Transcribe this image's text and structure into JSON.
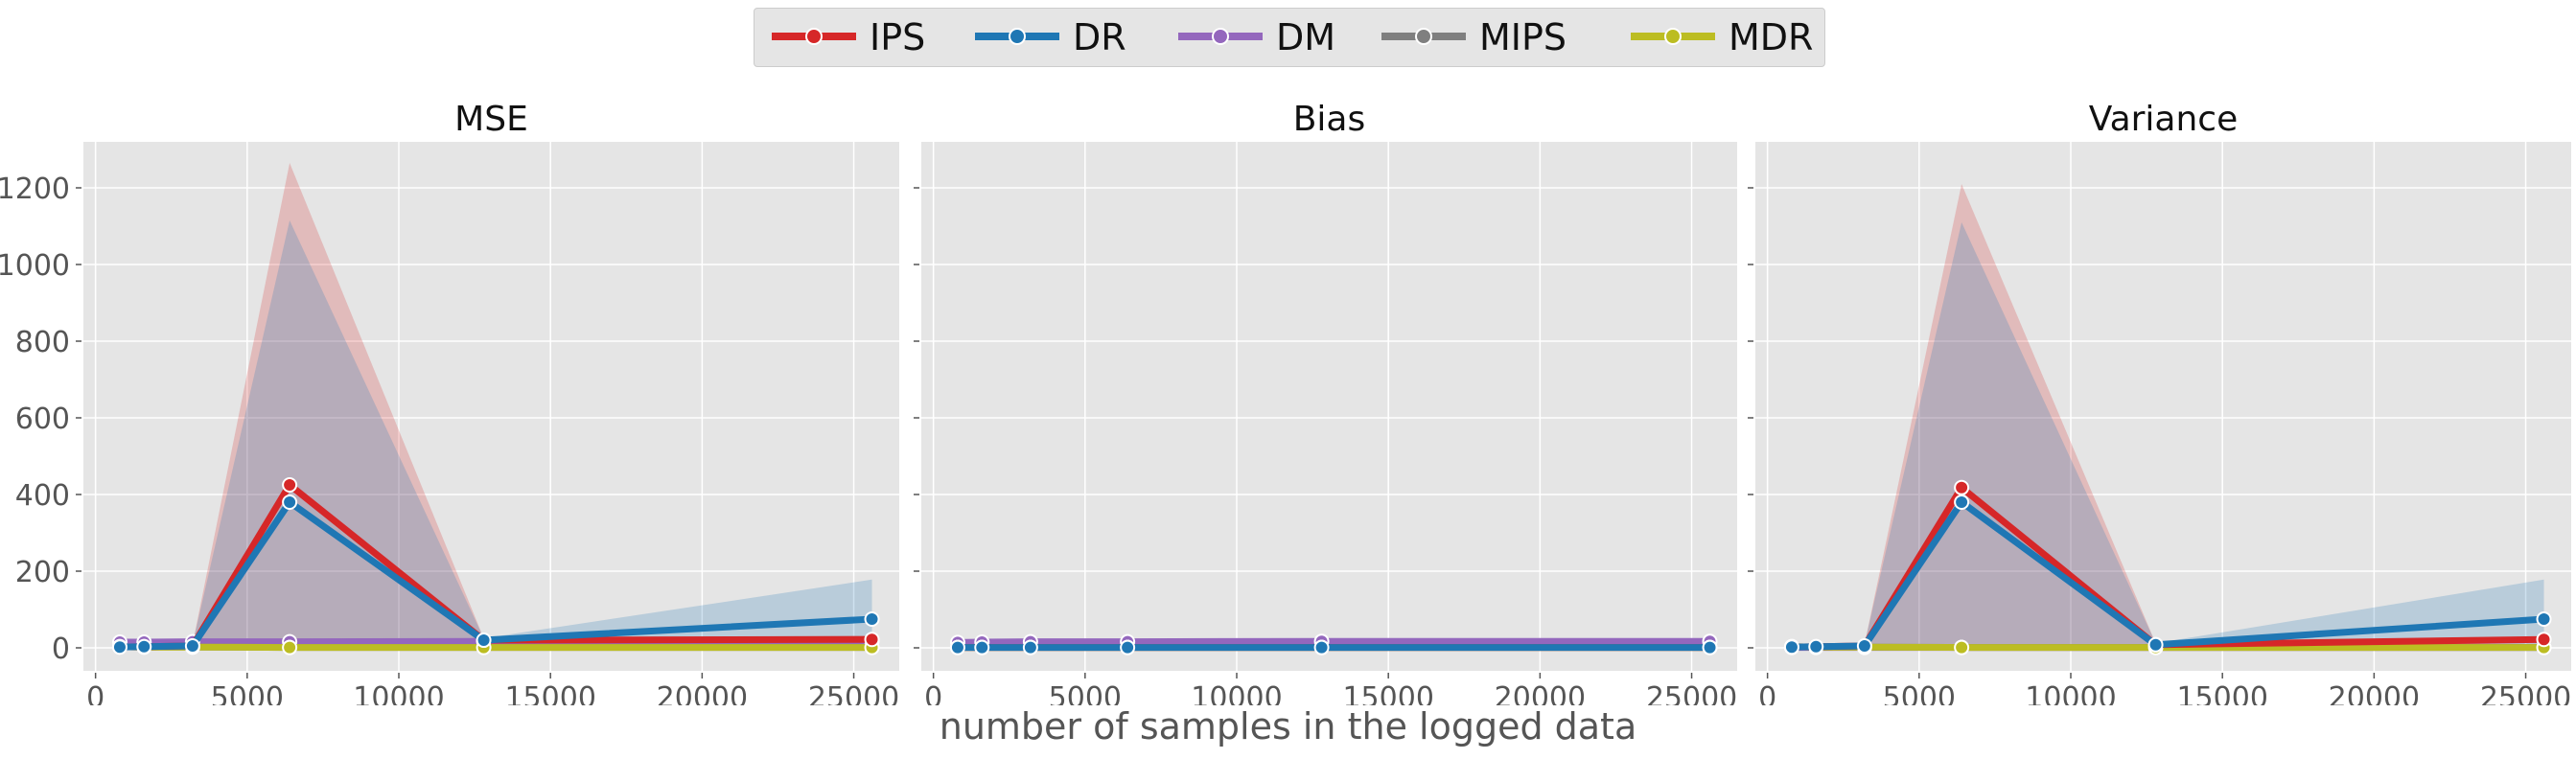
{
  "chart_data": {
    "type": "line",
    "shared_xlabel": "number of samples in the logged data",
    "x_ticks": [
      0,
      5000,
      10000,
      15000,
      20000,
      25000
    ],
    "y_ticks": [
      0,
      200,
      400,
      600,
      800,
      1000,
      1200
    ],
    "xlim": [
      -400,
      26500
    ],
    "ylim": [
      -60,
      1320
    ],
    "grid": true,
    "legend_position": "top-center",
    "legend": [
      {
        "name": "IPS",
        "color": "#d62728"
      },
      {
        "name": "DR",
        "color": "#1f77b4"
      },
      {
        "name": "DM",
        "color": "#9467bd"
      },
      {
        "name": "MIPS",
        "color": "#7f7f7f"
      },
      {
        "name": "MDR",
        "color": "#bcbd22"
      }
    ],
    "panels": [
      {
        "title": "MSE",
        "series": [
          {
            "name": "IPS",
            "x": [
              800,
              1600,
              3200,
              6400,
              12800,
              25600
            ],
            "y": [
              2,
              3,
              5,
              425,
              20,
              22
            ],
            "band_upper": [
              5,
              6,
              10,
              1265,
              25,
              32
            ],
            "band_lower": [
              0,
              0,
              0,
              0,
              10,
              12
            ]
          },
          {
            "name": "DR",
            "x": [
              800,
              1600,
              3200,
              6400,
              12800,
              25600
            ],
            "y": [
              2,
              3,
              5,
              380,
              20,
              75
            ],
            "band_upper": [
              5,
              6,
              10,
              1115,
              25,
              178
            ],
            "band_lower": [
              0,
              0,
              0,
              0,
              10,
              0
            ]
          },
          {
            "name": "DM",
            "x": [
              800,
              1600,
              3200,
              6400,
              12800,
              25600
            ],
            "y": [
              15,
              15,
              16,
              16,
              17,
              17
            ]
          },
          {
            "name": "MIPS",
            "x": [
              800,
              1600,
              3200,
              6400,
              12800,
              25600
            ],
            "y": [
              3,
              2,
              2,
              1,
              1,
              1
            ]
          },
          {
            "name": "MDR",
            "x": [
              800,
              1600,
              3200,
              6400,
              12800,
              25600
            ],
            "y": [
              3,
              2,
              2,
              1,
              1,
              1
            ]
          }
        ]
      },
      {
        "title": "Bias",
        "series": [
          {
            "name": "IPS",
            "x": [
              800,
              1600,
              3200,
              6400,
              12800,
              25600
            ],
            "y": [
              1,
              1,
              1,
              1,
              1,
              1
            ]
          },
          {
            "name": "DR",
            "x": [
              800,
              1600,
              3200,
              6400,
              12800,
              25600
            ],
            "y": [
              1,
              1,
              1,
              1,
              1,
              1
            ]
          },
          {
            "name": "DM",
            "x": [
              800,
              1600,
              3200,
              6400,
              12800,
              25600
            ],
            "y": [
              14,
              15,
              16,
              16,
              17,
              17
            ]
          },
          {
            "name": "MIPS",
            "x": [
              800,
              1600,
              3200,
              6400,
              12800,
              25600
            ],
            "y": [
              1,
              1,
              1,
              1,
              1,
              1
            ]
          },
          {
            "name": "MDR",
            "x": [
              800,
              1600,
              3200,
              6400,
              12800,
              25600
            ],
            "y": [
              1,
              1,
              1,
              1,
              1,
              1
            ]
          }
        ]
      },
      {
        "title": "Variance",
        "series": [
          {
            "name": "IPS",
            "x": [
              800,
              1600,
              3200,
              6400,
              12800,
              25600
            ],
            "y": [
              2,
              3,
              5,
              418,
              8,
              22
            ],
            "band_upper": [
              5,
              6,
              10,
              1210,
              12,
              30
            ],
            "band_lower": [
              0,
              0,
              0,
              0,
              2,
              12
            ]
          },
          {
            "name": "DR",
            "x": [
              800,
              1600,
              3200,
              6400,
              12800,
              25600
            ],
            "y": [
              2,
              3,
              5,
              380,
              8,
              75
            ],
            "band_upper": [
              5,
              6,
              10,
              1110,
              12,
              178
            ],
            "band_lower": [
              0,
              0,
              0,
              0,
              2,
              0
            ]
          },
          {
            "name": "DM",
            "x": [
              800,
              1600,
              3200,
              6400,
              12800,
              25600
            ],
            "y": [
              1,
              1,
              1,
              1,
              1,
              1
            ]
          },
          {
            "name": "MIPS",
            "x": [
              800,
              1600,
              3200,
              6400,
              12800,
              25600
            ],
            "y": [
              3,
              2,
              2,
              1,
              1,
              1
            ]
          },
          {
            "name": "MDR",
            "x": [
              800,
              1600,
              3200,
              6400,
              12800,
              25600
            ],
            "y": [
              3,
              2,
              2,
              1,
              1,
              1
            ]
          }
        ]
      }
    ]
  }
}
